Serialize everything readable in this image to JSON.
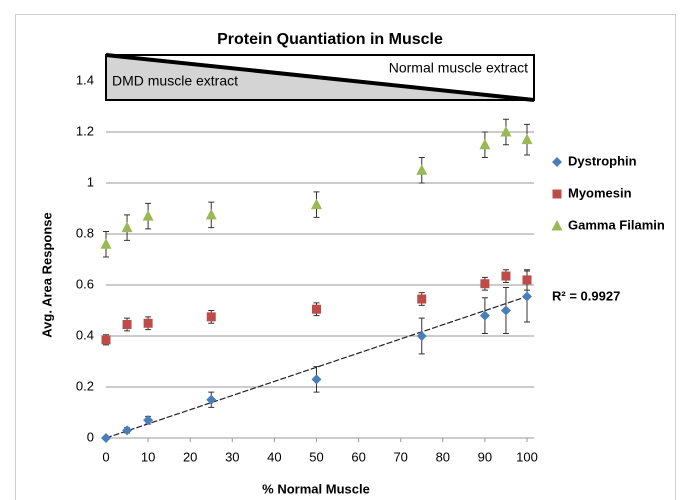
{
  "chart_data": {
    "type": "scatter",
    "title": "Protein Quantiation in Muscle",
    "x_label": "% Normal Muscle",
    "y_label": "Avg. Area Response",
    "x": [
      0,
      5,
      10,
      25,
      50,
      75,
      90,
      95,
      100
    ],
    "series": [
      {
        "name": "Dystrophin",
        "color": "#4a7ebb",
        "marker": "diamond",
        "values": [
          0,
          0.03,
          0.07,
          0.15,
          0.23,
          0.4,
          0.48,
          0.5,
          0.555
        ],
        "errors": [
          0.005,
          0.01,
          0.015,
          0.03,
          0.05,
          0.07,
          0.07,
          0.09,
          0.1
        ]
      },
      {
        "name": "Myomesin",
        "color": "#be4b48",
        "marker": "square",
        "values": [
          0.385,
          0.445,
          0.45,
          0.475,
          0.505,
          0.545,
          0.605,
          0.635,
          0.62
        ],
        "errors": [
          0.02,
          0.025,
          0.025,
          0.025,
          0.025,
          0.025,
          0.025,
          0.025,
          0.04
        ]
      },
      {
        "name": "Gamma Filamin",
        "color": "#98b954",
        "marker": "triangle",
        "values": [
          0.76,
          0.825,
          0.87,
          0.875,
          0.915,
          1.05,
          1.15,
          1.2,
          1.17
        ],
        "errors": [
          0.05,
          0.05,
          0.05,
          0.05,
          0.05,
          0.05,
          0.05,
          0.05,
          0.06
        ]
      }
    ],
    "trendline": {
      "x": [
        0,
        100
      ],
      "values": [
        0,
        0.555
      ],
      "annotation": "R² = 0.9927"
    },
    "gradient_labels": {
      "left": "DMD muscle extract",
      "right": "Normal muscle extract"
    },
    "xlim": [
      0,
      100
    ],
    "xticks": [
      0,
      10,
      20,
      30,
      40,
      50,
      60,
      70,
      80,
      90,
      100
    ],
    "ylim": [
      0,
      1.5
    ],
    "yticks": [
      0,
      0.2,
      0.4,
      0.6,
      0.8,
      1,
      1.2,
      1.4
    ],
    "grid": true
  }
}
